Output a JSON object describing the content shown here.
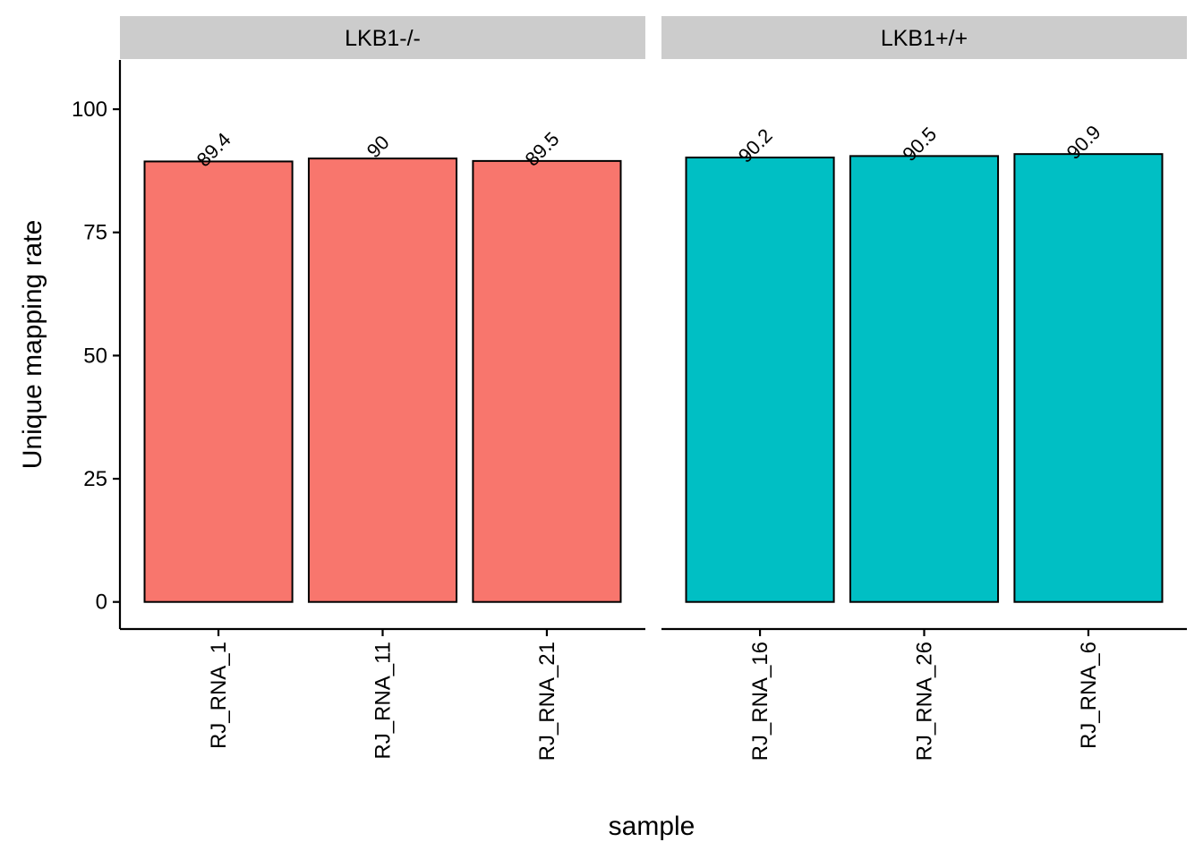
{
  "chart_data": {
    "type": "bar",
    "xlabel": "sample",
    "ylabel": "Unique mapping rate",
    "ylim": [
      -5.5,
      110
    ],
    "yticks": [
      0,
      25,
      50,
      75,
      100
    ],
    "grid": false,
    "legend": "none",
    "facets": [
      {
        "name": "LKB1-/-",
        "color": "#F8766D",
        "categories": [
          "RJ_RNA_1",
          "RJ_RNA_11",
          "RJ_RNA_21"
        ],
        "values": [
          89.4,
          90,
          89.5
        ],
        "labels": [
          "89.4",
          "90",
          "89.5"
        ]
      },
      {
        "name": "LKB1+/+",
        "color": "#00BFC4",
        "categories": [
          "RJ_RNA_16",
          "RJ_RNA_26",
          "RJ_RNA_6"
        ],
        "values": [
          90.2,
          90.5,
          90.9
        ],
        "labels": [
          "90.2",
          "90.5",
          "90.9"
        ]
      }
    ]
  },
  "colors": {
    "strip_background": "#cccccc",
    "bar_outline": "#000000",
    "axis": "#000000"
  }
}
